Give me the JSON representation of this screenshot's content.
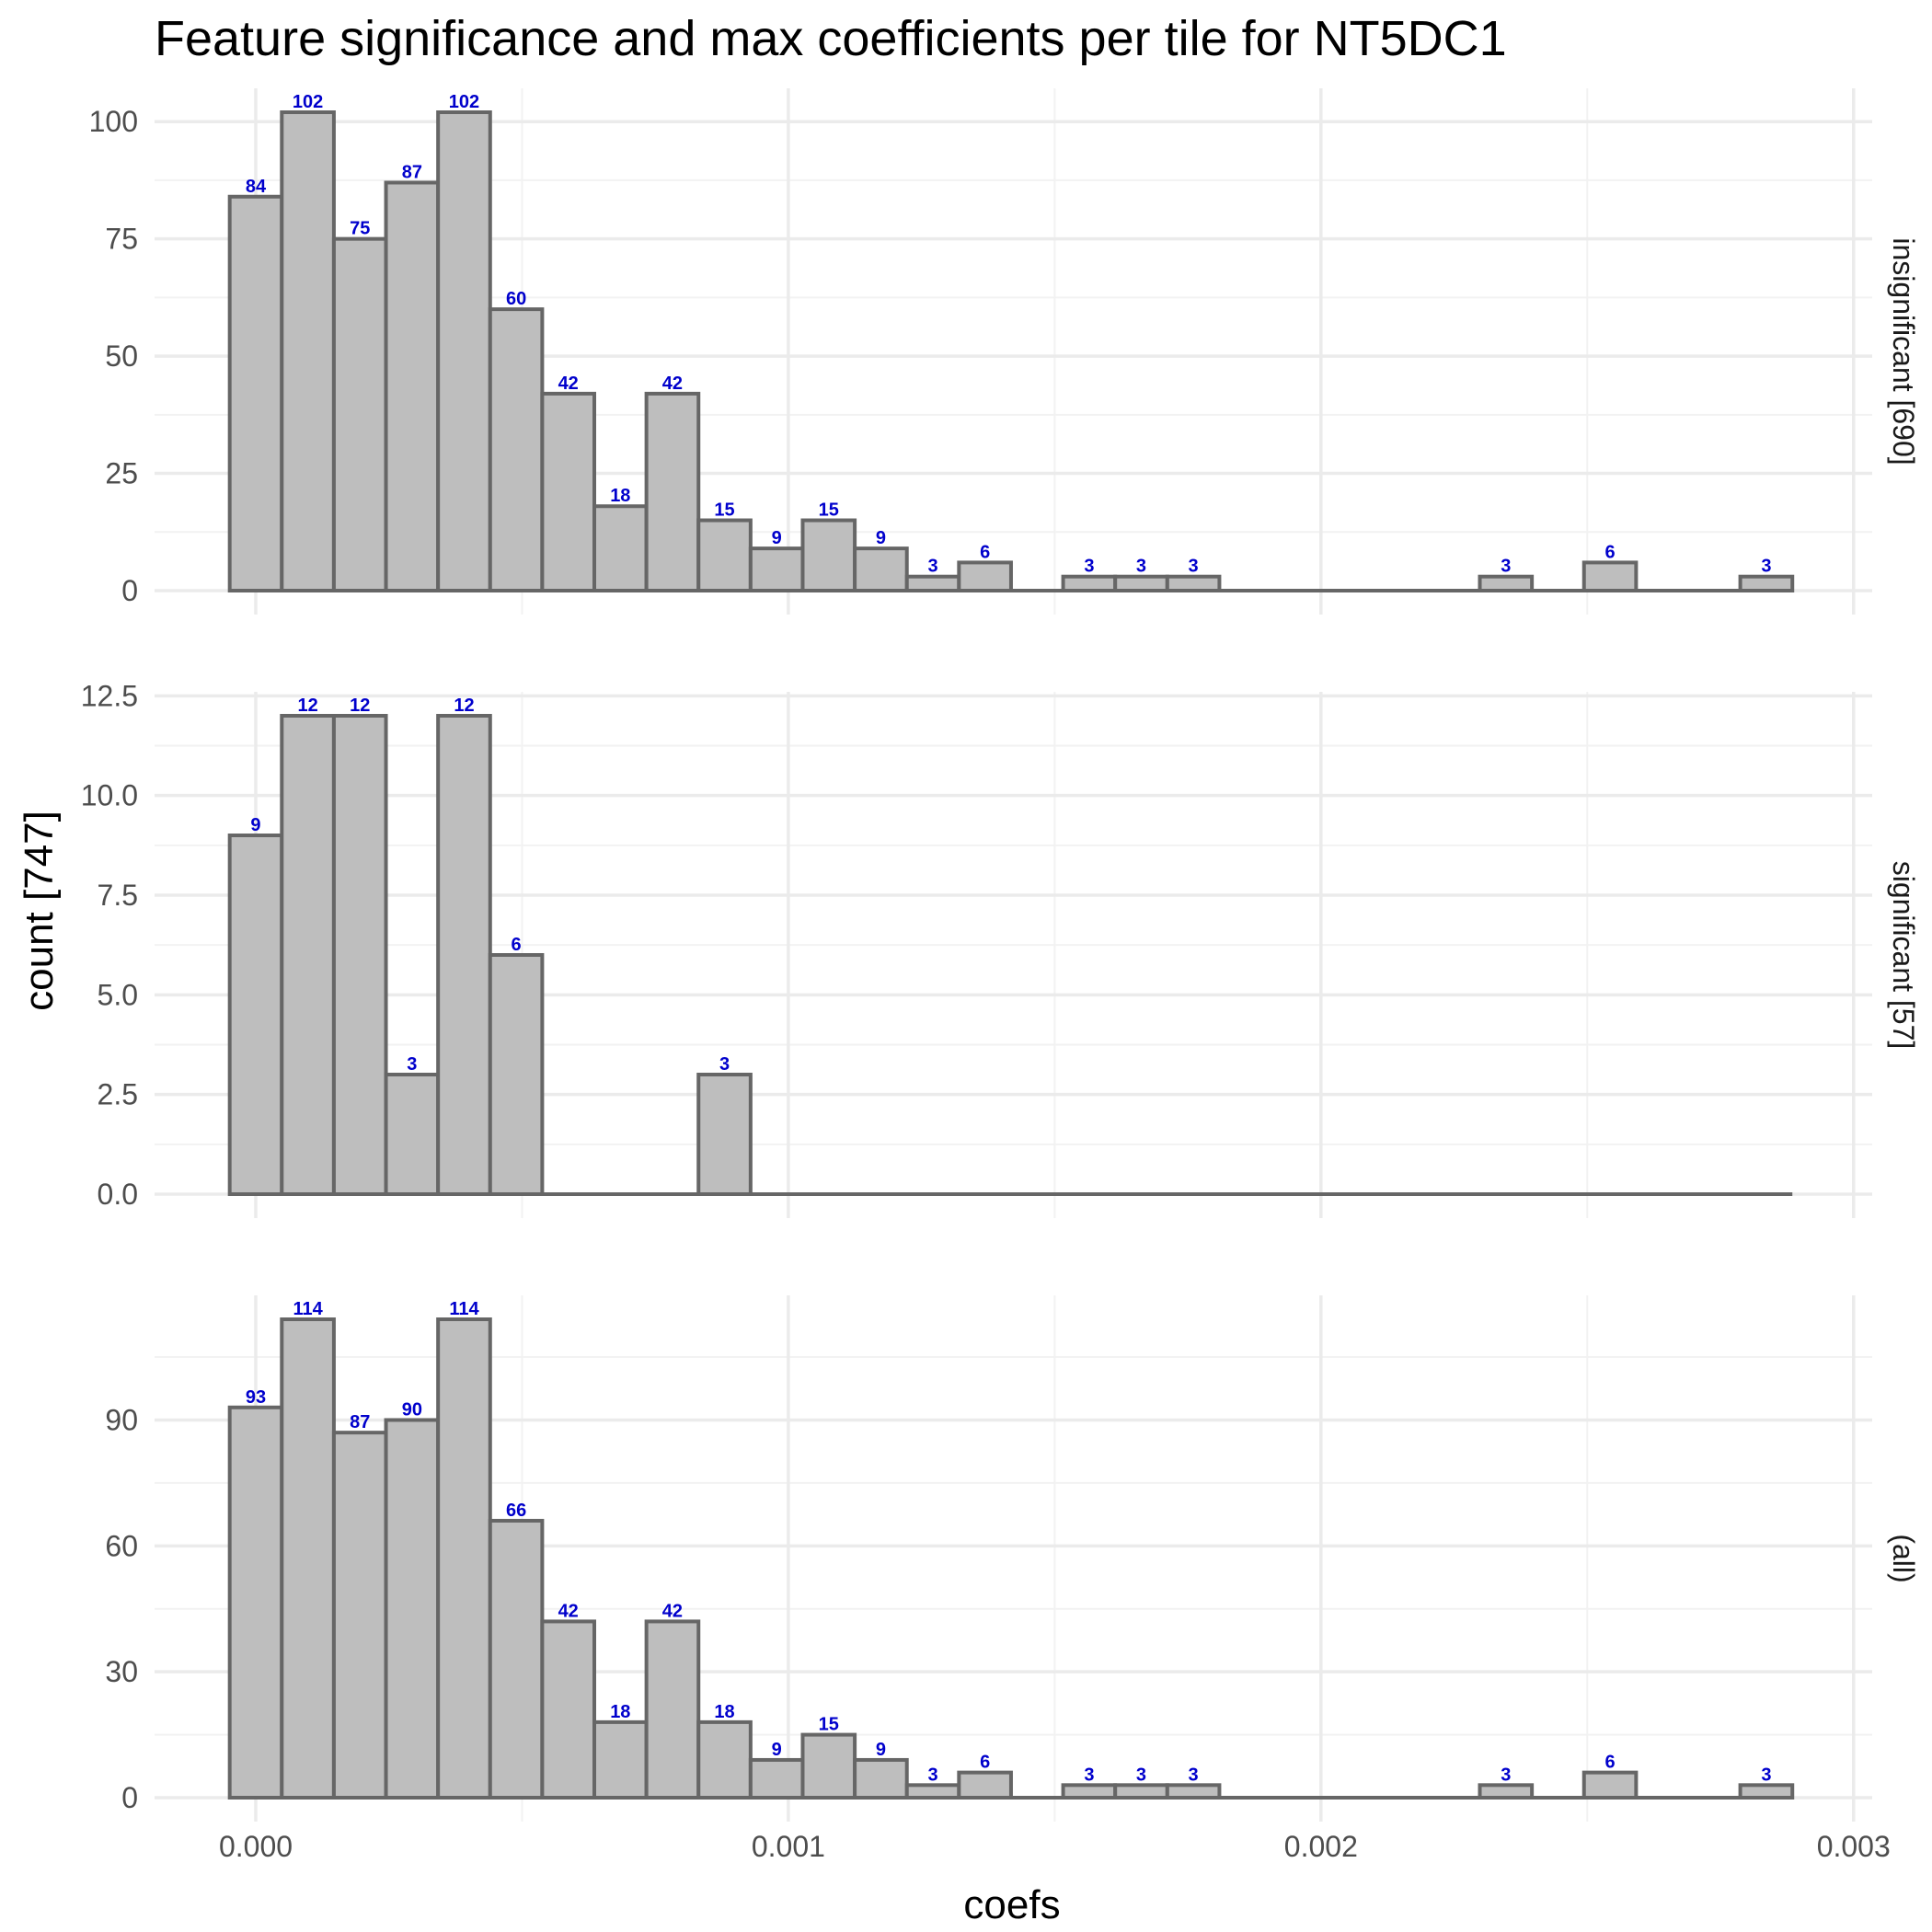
{
  "chart_data": {
    "type": "bar",
    "title": "Feature significance and max coefficients per tile for NT5DC1",
    "xlabel": "coefs",
    "ylabel": "count [747]",
    "x_ticks": [
      0.0,
      0.001,
      0.002,
      0.003
    ],
    "x_tick_labels": [
      "0.000",
      "0.001",
      "0.002",
      "0.003"
    ],
    "xlim": [
      -0.00019,
      0.003035
    ],
    "bin_width": 9.78e-05,
    "bin_start": -4.89e-05,
    "colors": {
      "bar_fill": "#bebebe",
      "bar_outline": "#666666",
      "label": "#0000cc"
    },
    "grid": true,
    "panels": [
      {
        "strip": "insignificant [690]",
        "ylim": [
          -5.1,
          107.1
        ],
        "y_ticks": [
          0,
          25,
          50,
          75,
          100
        ],
        "y_tick_labels": [
          "0",
          "25",
          "50",
          "75",
          "100"
        ],
        "counts": [
          84,
          102,
          75,
          87,
          102,
          60,
          42,
          18,
          42,
          15,
          9,
          15,
          9,
          3,
          6,
          0,
          3,
          3,
          3,
          0,
          0,
          0,
          0,
          0,
          3,
          0,
          6,
          0,
          0,
          3
        ]
      },
      {
        "strip": "significant [57]",
        "ylim": [
          -0.6,
          12.6
        ],
        "y_ticks": [
          0,
          2.5,
          5,
          7.5,
          10,
          12.5
        ],
        "y_tick_labels": [
          "0.0",
          "2.5",
          "5.0",
          "7.5",
          "10.0",
          "12.5"
        ],
        "counts": [
          9,
          12,
          12,
          3,
          12,
          6,
          0,
          0,
          0,
          3,
          0,
          0,
          0,
          0,
          0,
          0,
          0,
          0,
          0,
          0,
          0,
          0,
          0,
          0,
          0,
          0,
          0,
          0,
          0,
          0
        ]
      },
      {
        "strip": "(all)",
        "ylim": [
          -5.7,
          119.7
        ],
        "y_ticks": [
          0,
          30,
          60,
          90
        ],
        "y_tick_labels": [
          "0",
          "30",
          "60",
          "90"
        ],
        "counts": [
          93,
          114,
          87,
          90,
          114,
          66,
          42,
          18,
          42,
          18,
          9,
          15,
          9,
          3,
          6,
          0,
          3,
          3,
          3,
          0,
          0,
          0,
          0,
          0,
          3,
          0,
          6,
          0,
          0,
          3
        ]
      }
    ]
  }
}
